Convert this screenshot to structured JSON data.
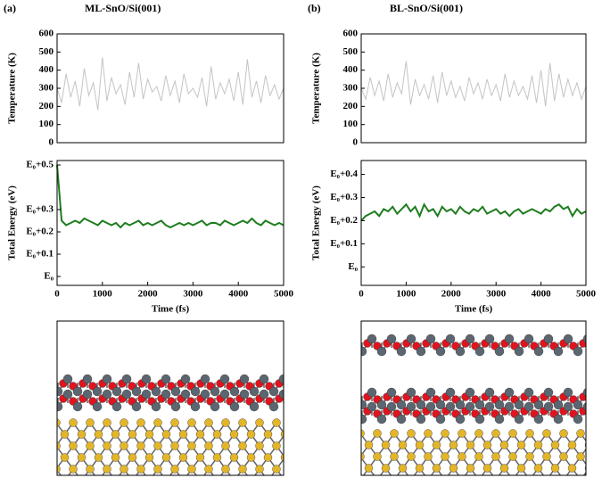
{
  "chart_data": [
    {
      "type": "line",
      "panel_label": "(a)",
      "title": "ML-SnO/Si(001)",
      "ylabel": "Temperature (K)",
      "x": [
        0,
        100,
        200,
        300,
        400,
        500,
        600,
        700,
        800,
        900,
        1000,
        1100,
        1200,
        1300,
        1400,
        1500,
        1600,
        1700,
        1800,
        1900,
        2000,
        2100,
        2200,
        2300,
        2400,
        2500,
        2600,
        2700,
        2800,
        2900,
        3000,
        3100,
        3200,
        3300,
        3400,
        3500,
        3600,
        3700,
        3800,
        3900,
        4000,
        4100,
        4200,
        4300,
        4400,
        4500,
        4600,
        4700,
        4800,
        4900,
        5000
      ],
      "values": [
        300,
        220,
        380,
        250,
        340,
        200,
        410,
        260,
        330,
        180,
        470,
        230,
        360,
        270,
        320,
        210,
        390,
        250,
        440,
        240,
        350,
        280,
        310,
        230,
        370,
        260,
        340,
        220,
        380,
        270,
        300,
        250,
        360,
        200,
        420,
        240,
        330,
        270,
        350,
        230,
        390,
        210,
        460,
        250,
        340,
        220,
        370,
        260,
        320,
        240,
        300
      ],
      "color": "#c4c4c4",
      "xlim": [
        0,
        5000
      ],
      "ylim": [
        0,
        600
      ],
      "yticks": [
        0,
        100,
        200,
        300,
        400,
        500,
        600
      ]
    },
    {
      "type": "line",
      "ylabel": "Total Energy (eV)",
      "xlabel": "Time (fs)",
      "x": [
        0,
        100,
        200,
        300,
        400,
        500,
        600,
        700,
        800,
        900,
        1000,
        1100,
        1200,
        1300,
        1400,
        1500,
        1600,
        1700,
        1800,
        1900,
        2000,
        2100,
        2200,
        2300,
        2400,
        2500,
        2600,
        2700,
        2800,
        2900,
        3000,
        3100,
        3200,
        3300,
        3400,
        3500,
        3600,
        3700,
        3800,
        3900,
        4000,
        4100,
        4200,
        4300,
        4400,
        4500,
        4600,
        4700,
        4800,
        4900,
        5000
      ],
      "values": [
        0.5,
        0.25,
        0.23,
        0.24,
        0.25,
        0.24,
        0.26,
        0.25,
        0.24,
        0.23,
        0.25,
        0.24,
        0.23,
        0.24,
        0.22,
        0.24,
        0.23,
        0.24,
        0.25,
        0.23,
        0.24,
        0.23,
        0.24,
        0.25,
        0.23,
        0.22,
        0.23,
        0.24,
        0.23,
        0.24,
        0.23,
        0.24,
        0.25,
        0.23,
        0.24,
        0.24,
        0.23,
        0.25,
        0.24,
        0.23,
        0.24,
        0.25,
        0.24,
        0.26,
        0.24,
        0.23,
        0.25,
        0.24,
        0.23,
        0.24,
        0.23
      ],
      "color": "#1e7d1e",
      "xlim": [
        0,
        5000
      ],
      "xticks": [
        0,
        1000,
        2000,
        3000,
        4000,
        5000
      ],
      "ylim": [
        -0.04,
        0.52
      ],
      "yticks": [
        {
          "value": 0,
          "label": "E₀"
        },
        {
          "value": 0.1,
          "label": "E₀+0.1"
        },
        {
          "value": 0.2,
          "label": "E₀+0.2"
        },
        {
          "value": 0.3,
          "label": "E₀+0.3"
        },
        {
          "value": 0.5,
          "label": "E₀+0.5"
        }
      ]
    },
    {
      "type": "line",
      "panel_label": "(b)",
      "title": "BL-SnO/Si(001)",
      "ylabel": "Temperature (K)",
      "x": [
        0,
        100,
        200,
        300,
        400,
        500,
        600,
        700,
        800,
        900,
        1000,
        1100,
        1200,
        1300,
        1400,
        1500,
        1600,
        1700,
        1800,
        1900,
        2000,
        2100,
        2200,
        2300,
        2400,
        2500,
        2600,
        2700,
        2800,
        2900,
        3000,
        3100,
        3200,
        3300,
        3400,
        3500,
        3600,
        3700,
        3800,
        3900,
        4000,
        4100,
        4200,
        4300,
        4400,
        4500,
        4600,
        4700,
        4800,
        4900,
        5000
      ],
      "values": [
        300,
        240,
        360,
        260,
        340,
        230,
        380,
        250,
        330,
        270,
        450,
        210,
        350,
        260,
        320,
        240,
        370,
        220,
        390,
        260,
        340,
        250,
        310,
        230,
        360,
        270,
        330,
        240,
        350,
        260,
        320,
        230,
        380,
        250,
        340,
        260,
        310,
        240,
        370,
        220,
        400,
        200,
        440,
        230,
        380,
        250,
        350,
        260,
        330,
        240,
        310
      ],
      "color": "#c4c4c4",
      "xlim": [
        0,
        5000
      ],
      "ylim": [
        0,
        600
      ],
      "yticks": [
        0,
        100,
        200,
        300,
        400,
        500,
        600
      ]
    },
    {
      "type": "line",
      "ylabel": "Total Energy (eV)",
      "xlabel": "Time (fs)",
      "x": [
        0,
        100,
        200,
        300,
        400,
        500,
        600,
        700,
        800,
        900,
        1000,
        1100,
        1200,
        1300,
        1400,
        1500,
        1600,
        1700,
        1800,
        1900,
        2000,
        2100,
        2200,
        2300,
        2400,
        2500,
        2600,
        2700,
        2800,
        2900,
        3000,
        3100,
        3200,
        3300,
        3400,
        3500,
        3600,
        3700,
        3800,
        3900,
        4000,
        4100,
        4200,
        4300,
        4400,
        4500,
        4600,
        4700,
        4800,
        4900,
        5000
      ],
      "values": [
        0.2,
        0.22,
        0.23,
        0.24,
        0.22,
        0.25,
        0.24,
        0.26,
        0.23,
        0.25,
        0.27,
        0.24,
        0.26,
        0.22,
        0.27,
        0.24,
        0.25,
        0.22,
        0.26,
        0.24,
        0.25,
        0.23,
        0.26,
        0.24,
        0.23,
        0.25,
        0.24,
        0.26,
        0.23,
        0.24,
        0.25,
        0.23,
        0.24,
        0.22,
        0.24,
        0.25,
        0.23,
        0.24,
        0.25,
        0.24,
        0.23,
        0.25,
        0.24,
        0.26,
        0.27,
        0.25,
        0.26,
        0.22,
        0.25,
        0.23,
        0.24
      ],
      "color": "#1e7d1e",
      "xlim": [
        0,
        5000
      ],
      "xticks": [
        0,
        1000,
        2000,
        3000,
        4000,
        5000
      ],
      "ylim": [
        -0.08,
        0.46
      ],
      "yticks": [
        {
          "value": 0,
          "label": "E₀"
        },
        {
          "value": 0.1,
          "label": "E₀+0.1"
        },
        {
          "value": 0.2,
          "label": "E₀+0.2"
        },
        {
          "value": 0.3,
          "label": "E₀+0.3"
        },
        {
          "value": 0.4,
          "label": "E₀+0.4"
        }
      ]
    }
  ]
}
